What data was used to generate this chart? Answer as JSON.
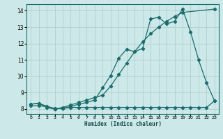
{
  "xlabel": "Humidex (Indice chaleur)",
  "xlim": [
    -0.5,
    23.5
  ],
  "ylim": [
    7.7,
    14.4
  ],
  "yticks": [
    8,
    9,
    10,
    11,
    12,
    13,
    14
  ],
  "xticks": [
    0,
    1,
    2,
    3,
    4,
    5,
    6,
    7,
    8,
    9,
    10,
    11,
    12,
    13,
    14,
    15,
    16,
    17,
    18,
    19,
    20,
    21,
    22,
    23
  ],
  "bg_color": "#cce8e8",
  "line_color": "#1a6b6b",
  "grid_color": "#aacaca",
  "series1_x": [
    0,
    1,
    2,
    3,
    4,
    5,
    6,
    7,
    8,
    9,
    10,
    11,
    12,
    13,
    14,
    15,
    16,
    17,
    18,
    19,
    20,
    21,
    22,
    23
  ],
  "series1_y": [
    8.3,
    8.35,
    8.1,
    8.0,
    8.05,
    8.15,
    8.3,
    8.4,
    8.55,
    9.3,
    10.05,
    11.1,
    11.65,
    11.5,
    11.7,
    13.5,
    13.6,
    13.2,
    13.35,
    14.1,
    12.7,
    11.0,
    9.6,
    8.5
  ],
  "series2_x": [
    0,
    1,
    3,
    4,
    5,
    6,
    7,
    8,
    9,
    10,
    11,
    12,
    13,
    14,
    15,
    16,
    17,
    18,
    19,
    23
  ],
  "series2_y": [
    8.3,
    8.35,
    8.0,
    8.1,
    8.25,
    8.4,
    8.55,
    8.7,
    8.85,
    9.4,
    10.1,
    10.8,
    11.5,
    12.1,
    12.6,
    13.0,
    13.35,
    13.65,
    13.9,
    14.1
  ],
  "series3_x": [
    0,
    1,
    2,
    3,
    4,
    5,
    6,
    7,
    8,
    9,
    10,
    11,
    12,
    13,
    14,
    15,
    16,
    17,
    18,
    19,
    20,
    21,
    22,
    23
  ],
  "series3_y": [
    8.2,
    8.2,
    8.15,
    8.05,
    8.05,
    8.1,
    8.1,
    8.1,
    8.1,
    8.1,
    8.1,
    8.1,
    8.1,
    8.1,
    8.1,
    8.1,
    8.1,
    8.1,
    8.1,
    8.1,
    8.1,
    8.1,
    8.1,
    8.5
  ]
}
